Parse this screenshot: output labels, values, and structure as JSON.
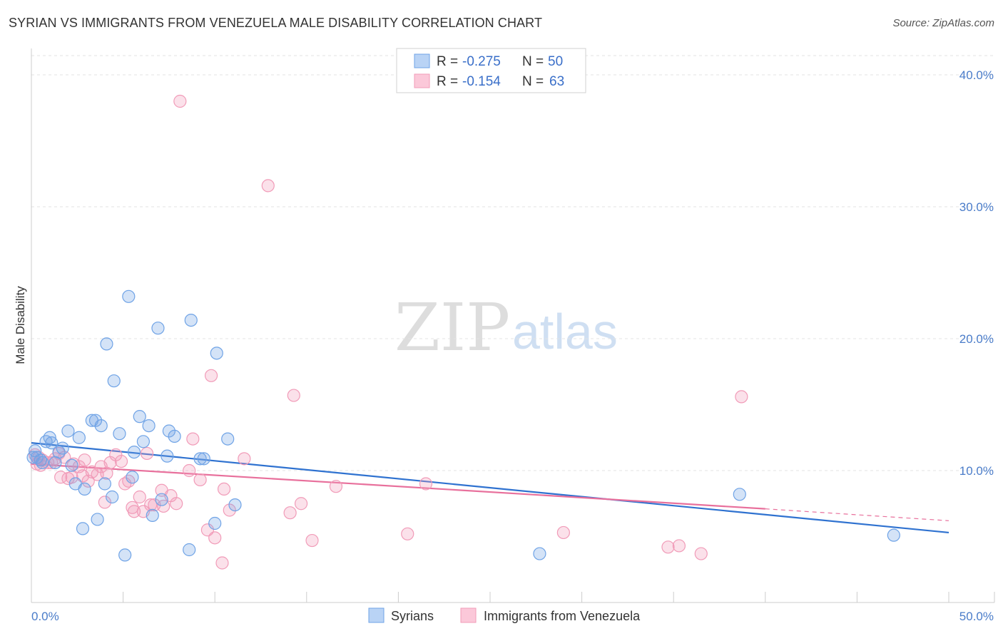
{
  "header": {
    "title": "SYRIAN VS IMMIGRANTS FROM VENEZUELA MALE DISABILITY CORRELATION CHART",
    "source": "Source: ZipAtlas.com"
  },
  "watermark": {
    "zip": "ZIP",
    "atlas": "atlas"
  },
  "legend": {
    "rows": [
      {
        "r_label": "R =",
        "r_value": "-0.275",
        "n_label": "N =",
        "n_value": "50"
      },
      {
        "r_label": "R =",
        "r_value": "-0.154",
        "n_label": "N =",
        "n_value": "63"
      }
    ]
  },
  "chart_data": {
    "type": "scatter",
    "title": "SYRIAN VS IMMIGRANTS FROM VENEZUELA MALE DISABILITY CORRELATION CHART",
    "xlabel": "",
    "ylabel": "Male Disability",
    "xlim": [
      0,
      50
    ],
    "ylim": [
      0,
      42
    ],
    "x_tick_labels": [
      "0.0%",
      "50.0%"
    ],
    "y_ticks": [
      10,
      20,
      30,
      40
    ],
    "y_tick_labels": [
      "10.0%",
      "20.0%",
      "30.0%",
      "40.0%"
    ],
    "grid": true,
    "legend_position": "bottom",
    "series": [
      {
        "name": "Syrians",
        "color": "#6fa3e6",
        "line_color": "#2f72d0",
        "r": -0.275,
        "n": 50,
        "trend": {
          "x": [
            0,
            50
          ],
          "y": [
            12.1,
            5.3
          ]
        },
        "points": [
          [
            0.2,
            11.5
          ],
          [
            0.3,
            11.0
          ],
          [
            0.5,
            10.8
          ],
          [
            0.6,
            10.6
          ],
          [
            0.8,
            12.2
          ],
          [
            1.0,
            12.5
          ],
          [
            1.1,
            12.1
          ],
          [
            1.3,
            10.6
          ],
          [
            1.5,
            11.4
          ],
          [
            1.7,
            11.7
          ],
          [
            2.0,
            13.0
          ],
          [
            2.2,
            10.4
          ],
          [
            2.4,
            9.0
          ],
          [
            2.6,
            12.5
          ],
          [
            2.8,
            5.6
          ],
          [
            2.9,
            8.6
          ],
          [
            3.3,
            13.8
          ],
          [
            3.5,
            13.8
          ],
          [
            3.6,
            6.3
          ],
          [
            3.8,
            13.4
          ],
          [
            4.0,
            9.0
          ],
          [
            4.1,
            19.6
          ],
          [
            4.4,
            8.0
          ],
          [
            4.5,
            16.8
          ],
          [
            4.8,
            12.8
          ],
          [
            5.1,
            3.6
          ],
          [
            5.3,
            23.2
          ],
          [
            5.5,
            9.5
          ],
          [
            5.6,
            11.4
          ],
          [
            5.9,
            14.1
          ],
          [
            6.1,
            12.2
          ],
          [
            6.4,
            13.4
          ],
          [
            6.6,
            6.6
          ],
          [
            6.9,
            20.8
          ],
          [
            7.1,
            7.8
          ],
          [
            7.4,
            11.1
          ],
          [
            7.5,
            13.0
          ],
          [
            7.8,
            12.6
          ],
          [
            8.6,
            4.0
          ],
          [
            8.7,
            21.4
          ],
          [
            9.2,
            10.9
          ],
          [
            9.4,
            10.9
          ],
          [
            10.0,
            6.0
          ],
          [
            10.1,
            18.9
          ],
          [
            10.7,
            12.4
          ],
          [
            11.1,
            7.4
          ],
          [
            27.7,
            3.7
          ],
          [
            38.6,
            8.2
          ],
          [
            47.0,
            5.1
          ],
          [
            0.1,
            11.0
          ]
        ]
      },
      {
        "name": "Immigrants from Venezuela",
        "color": "#f19bb8",
        "line_color": "#e8709c",
        "r": -0.154,
        "n": 63,
        "trend": {
          "x": [
            0,
            40
          ],
          "y": [
            10.5,
            7.1
          ]
        },
        "trend_dashed": {
          "x": [
            40,
            50
          ],
          "y": [
            7.1,
            6.2
          ]
        },
        "points": [
          [
            0.2,
            11.2
          ],
          [
            0.3,
            10.5
          ],
          [
            0.4,
            11.0
          ],
          [
            0.5,
            10.4
          ],
          [
            0.6,
            10.8
          ],
          [
            0.9,
            10.6
          ],
          [
            1.1,
            10.6
          ],
          [
            1.3,
            10.9
          ],
          [
            1.5,
            11.3
          ],
          [
            1.6,
            9.5
          ],
          [
            1.8,
            11.0
          ],
          [
            2.0,
            9.4
          ],
          [
            2.2,
            9.5
          ],
          [
            2.3,
            10.5
          ],
          [
            2.6,
            10.3
          ],
          [
            2.8,
            9.6
          ],
          [
            2.9,
            10.8
          ],
          [
            3.1,
            9.2
          ],
          [
            3.3,
            9.9
          ],
          [
            3.6,
            9.7
          ],
          [
            3.8,
            10.3
          ],
          [
            4.0,
            7.6
          ],
          [
            4.1,
            9.8
          ],
          [
            4.3,
            10.6
          ],
          [
            4.6,
            11.2
          ],
          [
            4.9,
            10.7
          ],
          [
            5.1,
            9.0
          ],
          [
            5.3,
            9.2
          ],
          [
            5.5,
            7.2
          ],
          [
            5.6,
            6.9
          ],
          [
            5.9,
            8.0
          ],
          [
            6.1,
            6.9
          ],
          [
            6.3,
            11.3
          ],
          [
            6.5,
            7.4
          ],
          [
            6.7,
            7.4
          ],
          [
            7.1,
            8.5
          ],
          [
            7.2,
            7.3
          ],
          [
            7.6,
            8.1
          ],
          [
            7.9,
            7.5
          ],
          [
            8.1,
            38.0
          ],
          [
            8.6,
            10.0
          ],
          [
            8.8,
            12.4
          ],
          [
            9.2,
            9.3
          ],
          [
            9.6,
            5.5
          ],
          [
            9.8,
            17.2
          ],
          [
            10.0,
            4.9
          ],
          [
            10.4,
            3.0
          ],
          [
            10.5,
            8.6
          ],
          [
            10.8,
            7.0
          ],
          [
            11.6,
            10.9
          ],
          [
            12.9,
            31.6
          ],
          [
            14.1,
            6.8
          ],
          [
            14.3,
            15.7
          ],
          [
            14.7,
            7.5
          ],
          [
            15.3,
            4.7
          ],
          [
            16.6,
            8.8
          ],
          [
            20.5,
            5.2
          ],
          [
            21.5,
            9.0
          ],
          [
            29.0,
            5.3
          ],
          [
            34.7,
            4.2
          ],
          [
            35.3,
            4.3
          ],
          [
            36.5,
            3.7
          ],
          [
            38.7,
            15.6
          ]
        ]
      }
    ]
  }
}
